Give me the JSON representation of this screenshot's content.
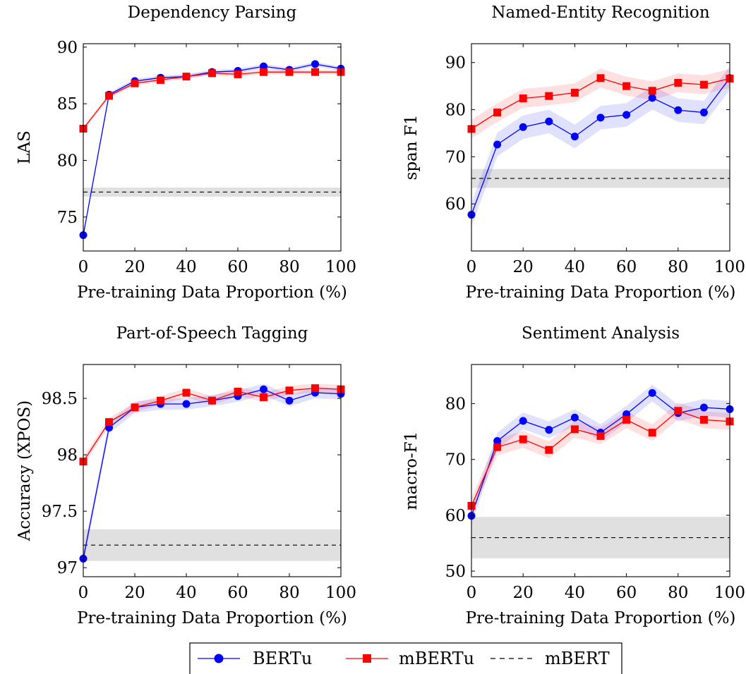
{
  "legend": {
    "placement": "bottom-center",
    "entries": [
      {
        "label": "BERTu",
        "color": "#0000ff",
        "marker": "circle",
        "line": "solid"
      },
      {
        "label": "mBERTu",
        "color": "#ff0000",
        "marker": "square",
        "line": "solid"
      },
      {
        "label": "mBERT",
        "color": "#000000",
        "marker": "none",
        "line": "dashed"
      }
    ]
  },
  "colors": {
    "BERTu": "#0000ff",
    "mBERTu": "#ff0000",
    "mBERT": "#000000",
    "mBERT_band": "#e0e0e0"
  },
  "chart_data": [
    {
      "type": "line",
      "title": "Dependency Parsing",
      "xlabel": "Pre-training Data Proportion (%)",
      "ylabel": "LAS",
      "x": [
        0,
        10,
        20,
        30,
        40,
        50,
        60,
        70,
        80,
        90,
        100
      ],
      "xticks": [
        0,
        20,
        40,
        60,
        80,
        100
      ],
      "xlim": [
        0,
        100
      ],
      "ylim": [
        72,
        90.3
      ],
      "yticks": [
        75,
        80,
        85,
        90
      ],
      "ytick_labels": [
        "75",
        "80",
        "85",
        "90"
      ],
      "grid": false,
      "series": [
        {
          "name": "BERTu",
          "values": [
            73.4,
            85.8,
            87.0,
            87.3,
            87.4,
            87.8,
            87.9,
            88.3,
            88.0,
            88.5,
            88.1
          ],
          "band": 0.2
        },
        {
          "name": "mBERTu",
          "values": [
            82.8,
            85.7,
            86.8,
            87.1,
            87.4,
            87.7,
            87.6,
            87.8,
            87.8,
            87.8,
            87.8
          ],
          "band": 0.2
        }
      ],
      "reference": {
        "name": "mBERT",
        "value": 77.2,
        "low": 76.8,
        "high": 77.6
      }
    },
    {
      "type": "line",
      "title": "Named-Entity Recognition",
      "xlabel": "Pre-training Data Proportion (%)",
      "ylabel": "span F1",
      "x": [
        0,
        10,
        20,
        30,
        40,
        50,
        60,
        70,
        80,
        90,
        100
      ],
      "xticks": [
        0,
        20,
        40,
        60,
        80,
        100
      ],
      "xlim": [
        0,
        100
      ],
      "ylim": [
        50,
        94
      ],
      "yticks": [
        60,
        70,
        80,
        90
      ],
      "ytick_labels": [
        "60",
        "70",
        "80",
        "90"
      ],
      "grid": false,
      "series": [
        {
          "name": "BERTu",
          "values": [
            57.7,
            72.6,
            76.3,
            77.5,
            74.3,
            78.3,
            78.9,
            82.5,
            79.9,
            79.4,
            86.7
          ],
          "band": 2.5
        },
        {
          "name": "mBERTu",
          "values": [
            75.9,
            79.4,
            82.4,
            82.9,
            83.6,
            86.7,
            85.0,
            84.0,
            85.7,
            85.3,
            86.6
          ],
          "band": 2.0
        }
      ],
      "reference": {
        "name": "mBERT",
        "value": 65.4,
        "low": 63.4,
        "high": 67.4
      }
    },
    {
      "type": "line",
      "title": "Part-of-Speech Tagging",
      "xlabel": "Pre-training Data Proportion (%)",
      "ylabel": "Accuracy (XPOS)",
      "x": [
        0,
        10,
        20,
        30,
        40,
        50,
        60,
        70,
        80,
        90,
        100
      ],
      "xticks": [
        0,
        20,
        40,
        60,
        80,
        100
      ],
      "xlim": [
        0,
        100
      ],
      "ylim": [
        96.92,
        98.8
      ],
      "yticks": [
        97.0,
        97.5,
        98.0,
        98.5
      ],
      "ytick_labels": [
        "97",
        "97.5",
        "98",
        "98.5"
      ],
      "grid": false,
      "series": [
        {
          "name": "BERTu",
          "values": [
            97.08,
            98.24,
            98.42,
            98.45,
            98.45,
            98.48,
            98.52,
            98.58,
            98.48,
            98.55,
            98.54
          ],
          "band": 0.05
        },
        {
          "name": "mBERTu",
          "values": [
            97.94,
            98.29,
            98.42,
            98.48,
            98.55,
            98.48,
            98.56,
            98.51,
            98.57,
            98.59,
            98.58
          ],
          "band": 0.04
        }
      ],
      "reference": {
        "name": "mBERT",
        "value": 97.2,
        "low": 97.06,
        "high": 97.34
      }
    },
    {
      "type": "line",
      "title": "Sentiment Analysis",
      "xlabel": "Pre-training Data Proportion (%)",
      "ylabel": "macro-F1",
      "x": [
        0,
        10,
        20,
        30,
        40,
        50,
        60,
        70,
        80,
        90,
        100
      ],
      "xticks": [
        0,
        20,
        40,
        60,
        80,
        100
      ],
      "xlim": [
        0,
        100
      ],
      "ylim": [
        49,
        87
      ],
      "yticks": [
        50,
        60,
        70,
        80
      ],
      "ytick_labels": [
        "50",
        "60",
        "70",
        "80"
      ],
      "grid": false,
      "series": [
        {
          "name": "BERTu",
          "values": [
            59.9,
            73.3,
            76.9,
            75.3,
            77.5,
            74.8,
            78.1,
            81.9,
            78.3,
            79.3,
            79.0
          ],
          "band": 1.5
        },
        {
          "name": "mBERTu",
          "values": [
            61.7,
            72.2,
            73.6,
            71.7,
            75.4,
            74.2,
            77.1,
            74.8,
            78.7,
            77.1,
            76.8
          ],
          "band": 1.5
        }
      ],
      "reference": {
        "name": "mBERT",
        "value": 56.0,
        "low": 52.3,
        "high": 59.7
      }
    }
  ]
}
